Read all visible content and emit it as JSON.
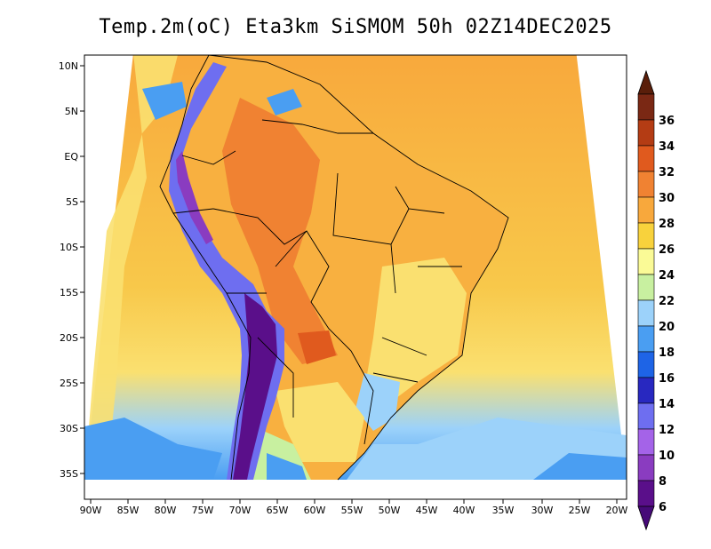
{
  "title": "Temp.2m(oC) Eta3km SiSMOM 50h 02Z14DEC2025",
  "map": {
    "lat_labels": [
      "10N",
      "5N",
      "EQ",
      "5S",
      "10S",
      "15S",
      "20S",
      "25S",
      "30S",
      "35S"
    ],
    "lon_labels": [
      "90W",
      "85W",
      "80W",
      "75W",
      "70W",
      "65W",
      "60W",
      "55W",
      "50W",
      "45W",
      "40W",
      "35W",
      "30W",
      "25W",
      "20W"
    ],
    "region": "South America"
  },
  "colorbar": {
    "levels": [
      "6",
      "8",
      "10",
      "12",
      "14",
      "16",
      "18",
      "20",
      "22",
      "24",
      "26",
      "28",
      "30",
      "32",
      "34",
      "36"
    ],
    "colors": [
      "#5a0f8a",
      "#8a3cc0",
      "#a463e8",
      "#6e6ef0",
      "#2828c0",
      "#1e64e6",
      "#4a9ef2",
      "#9cd2fa",
      "#c8f0a0",
      "#fafa96",
      "#f8d23c",
      "#f8a83c",
      "#f08232",
      "#e05a1e",
      "#b43c14",
      "#7a2814"
    ],
    "bottom_color": "#460a78",
    "top_color": "#5a1e0a"
  }
}
